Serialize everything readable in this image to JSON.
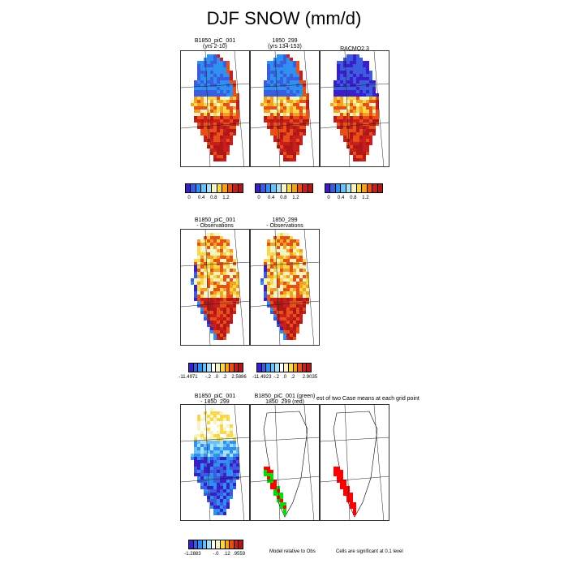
{
  "title": "DJF SNOW (mm/d)",
  "rows": [
    {
      "panels": [
        {
          "title1": "B1850_piC_001",
          "title2": "(yrs 2-10)",
          "field": "mean_a"
        },
        {
          "title1": "1850_299",
          "title2": "(yrs 134-153)",
          "field": "mean_b"
        },
        {
          "title1": "RACMO2.3",
          "title2": "",
          "field": "mean_obs"
        }
      ],
      "labelbars": [
        {
          "ticks": [
            "0",
            "0.4",
            "0.8",
            "1.2"
          ]
        },
        {
          "ticks": [
            "0",
            "0.4",
            "0.8",
            "1.2"
          ]
        },
        {
          "ticks": [
            "0",
            "0.4",
            "0.8",
            "1.2"
          ]
        }
      ]
    },
    {
      "panels": [
        {
          "title1": "B1850_piC_001",
          "title2": "- Observations",
          "field": "diff_a"
        },
        {
          "title1": "1850_299",
          "title2": "- Observations",
          "field": "diff_b"
        }
      ],
      "labelbars": [
        {
          "ticks": [
            "-11.4971",
            "-.2",
            ".0",
            ".2",
            "2.5886"
          ]
        },
        {
          "ticks": [
            "-11.4923",
            "-.2",
            ".0",
            ".2",
            "2.9035"
          ]
        }
      ]
    },
    {
      "panels": [
        {
          "title1": "B1850_piC_001",
          "title2": "- 1850_299",
          "field": "diff_ab"
        },
        {
          "title1": "B1850_piC_001 (green)",
          "title2": "1850_299 (red)",
          "field": "sig_model"
        },
        {
          "title1": "",
          "title2": "",
          "field": "sig_case"
        }
      ],
      "overlay_title": "est of two Case means at each grid point",
      "labelbars": [
        {
          "ticks": [
            "-1.2883",
            "-.0",
            ".12",
            ".9559"
          ]
        }
      ],
      "notes": [
        "Model relative to Obs",
        "Cells are significant at 0.1 level"
      ]
    }
  ],
  "chart_data": {
    "type": "heatmap",
    "title": "DJF SNOW (mm/d)",
    "palettes": {
      "mean": [
        "#3a1fc8",
        "#3c5ce0",
        "#2e90f0",
        "#6cc0f4",
        "#a8e0f8",
        "#f4f4c4",
        "#f8d848",
        "#f4a020",
        "#e85018",
        "#c81e1e",
        "#b01818"
      ],
      "diff": [
        "#3a1fc8",
        "#3c5ce0",
        "#2e90f0",
        "#6cc0f4",
        "#a8e0f8",
        "#ffffff",
        "#f4f4c4",
        "#f8d848",
        "#f4a020",
        "#e85018",
        "#c81e1e",
        "#b01818"
      ],
      "sig": {
        "green": "#00e000",
        "red": "#ff0000"
      }
    },
    "colorbars": [
      {
        "panel": "B1850_piC_001 (yrs 2-10)",
        "range": [
          0,
          1.4
        ],
        "ticks": [
          0,
          0.4,
          0.8,
          1.2
        ]
      },
      {
        "panel": "1850_299 (yrs 134-153)",
        "range": [
          0,
          1.4
        ],
        "ticks": [
          0,
          0.4,
          0.8,
          1.2
        ]
      },
      {
        "panel": "RACMO2.3",
        "range": [
          0,
          1.4
        ],
        "ticks": [
          0,
          0.4,
          0.8,
          1.2
        ]
      },
      {
        "panel": "B1850_piC_001 - Observations",
        "min": -11.4971,
        "max": 2.5886
      },
      {
        "panel": "1850_299 - Observations",
        "min": -11.4923,
        "max": 2.9035
      },
      {
        "panel": "B1850_piC_001 - 1850_299",
        "min": -1.2883,
        "max": 0.9559
      }
    ]
  }
}
